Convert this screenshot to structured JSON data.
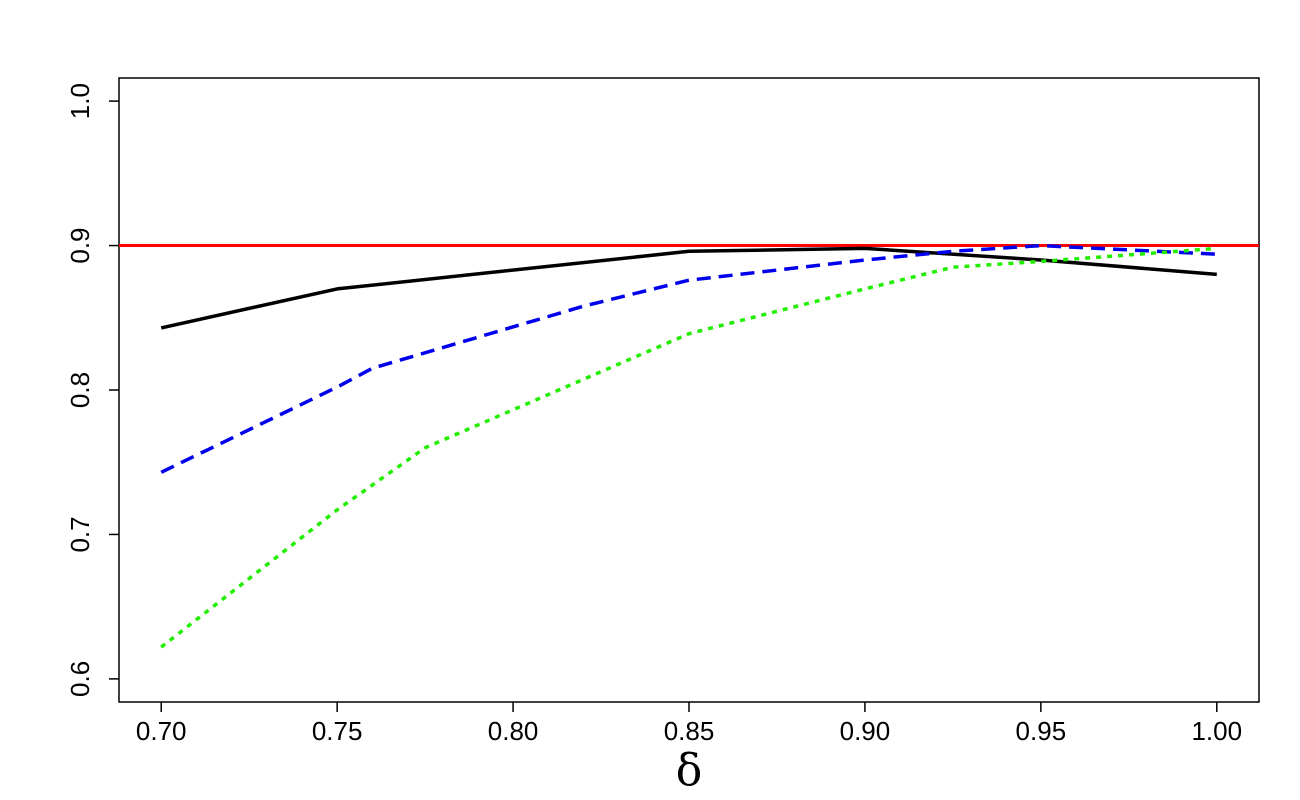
{
  "chart_data": {
    "type": "line",
    "title": "",
    "xlabel": "δ",
    "ylabel": "",
    "xlim": [
      0.688,
      1.012
    ],
    "ylim": [
      0.584,
      1.016
    ],
    "x_ticks": [
      "0.70",
      "0.75",
      "0.80",
      "0.85",
      "0.90",
      "0.95",
      "1.00"
    ],
    "y_ticks": [
      "0.6",
      "0.7",
      "0.8",
      "0.9",
      "1.0"
    ],
    "grid": false,
    "legend": "none",
    "reference_line": {
      "y": 0.9,
      "color": "#ff0000"
    },
    "series": [
      {
        "color": "#000000",
        "style": "solid",
        "x": [
          0.7,
          0.75,
          0.85,
          0.9,
          0.95,
          1.0
        ],
        "y": [
          0.843,
          0.87,
          0.896,
          0.898,
          0.89,
          0.88
        ]
      },
      {
        "color": "#0000ee",
        "style": "dashed",
        "x": [
          0.7,
          0.75,
          0.76,
          0.82,
          0.85,
          0.9,
          0.925,
          0.95,
          1.0
        ],
        "y": [
          0.743,
          0.802,
          0.815,
          0.858,
          0.876,
          0.89,
          0.896,
          0.9,
          0.894
        ]
      },
      {
        "color": "#22ee00",
        "style": "dotted",
        "x": [
          0.7,
          0.75,
          0.775,
          0.85,
          0.9,
          0.925,
          0.95,
          1.0
        ],
        "y": [
          0.622,
          0.717,
          0.76,
          0.839,
          0.87,
          0.885,
          0.889,
          0.898
        ]
      }
    ]
  }
}
